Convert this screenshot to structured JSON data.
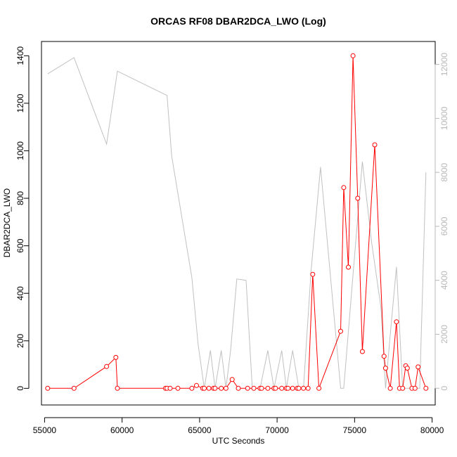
{
  "chart_data": {
    "type": "line",
    "title": "ORCAS RF08 DBAR2DCA_LWO (Log)",
    "xlabel": "UTC Seconds",
    "ylabel": "DBAR2DCA_LWO",
    "xlim": [
      54800,
      80200
    ],
    "ylim": [
      -70,
      1460
    ],
    "y2lim": [
      -620,
      12850
    ],
    "x_ticks": [
      55000,
      60000,
      65000,
      70000,
      75000,
      80000
    ],
    "y_ticks": [
      0,
      200,
      400,
      600,
      800,
      1000,
      1200,
      1400
    ],
    "y2_ticks": [
      0,
      2000,
      4000,
      6000,
      8000,
      10000,
      12000
    ],
    "series": [
      {
        "axis": "right",
        "color": "#c0c0c0",
        "marker": "none",
        "x": [
          55200,
          56900,
          59000,
          59700,
          62900,
          63200,
          64500,
          64900,
          65300,
          65700,
          66000,
          66400,
          66700,
          67000,
          67400,
          68000,
          68400,
          68900,
          69400,
          69800,
          70300,
          70600,
          71000,
          71400,
          71700,
          72200,
          72800,
          74100,
          74300,
          74900,
          75500,
          76100,
          76700,
          77000,
          77300,
          77700,
          78100,
          78700,
          79200,
          79600
        ],
        "y": [
          11650,
          12250,
          9050,
          11750,
          10850,
          8600,
          4100,
          1650,
          0,
          1400,
          0,
          1400,
          0,
          1400,
          4050,
          4000,
          0,
          0,
          1400,
          0,
          1400,
          0,
          1400,
          0,
          0,
          4400,
          8200,
          0,
          0,
          4200,
          8400,
          5400,
          3000,
          0,
          2000,
          4500,
          0,
          0,
          0,
          8000
        ]
      },
      {
        "axis": "left",
        "color": "#ff0000",
        "marker": "circle",
        "x": [
          55200,
          56900,
          59000,
          59600,
          59700,
          62800,
          62900,
          63100,
          63600,
          64500,
          64800,
          65200,
          65300,
          65600,
          65900,
          66000,
          66400,
          66700,
          67100,
          67500,
          68100,
          68500,
          68900,
          69000,
          69400,
          69800,
          69900,
          70300,
          70600,
          70700,
          71000,
          71300,
          71400,
          71700,
          72000,
          72300,
          72700,
          74100,
          74300,
          74600,
          74900,
          75200,
          75500,
          76300,
          76900,
          77000,
          77300,
          77700,
          77900,
          78100,
          78300,
          78400,
          78700,
          78900,
          79100,
          79600
        ],
        "y": [
          0,
          0,
          92,
          130,
          0,
          0,
          0,
          0,
          0,
          0,
          12,
          0,
          0,
          0,
          0,
          0,
          0,
          0,
          37,
          0,
          0,
          0,
          0,
          0,
          0,
          0,
          0,
          0,
          0,
          0,
          0,
          0,
          0,
          0,
          0,
          480,
          0,
          240,
          845,
          510,
          1400,
          800,
          155,
          1025,
          135,
          85,
          0,
          280,
          0,
          0,
          95,
          85,
          0,
          0,
          90,
          0
        ]
      }
    ]
  }
}
